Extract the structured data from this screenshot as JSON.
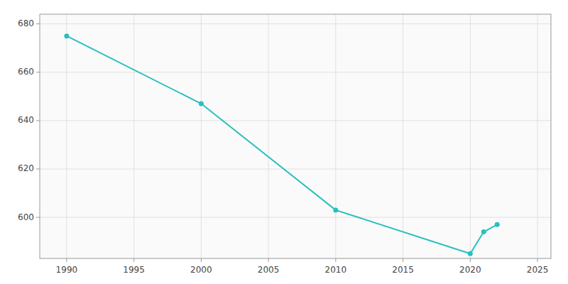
{
  "chart_data": {
    "type": "line",
    "x": [
      1990,
      2000,
      2010,
      2020,
      2021,
      2022
    ],
    "values": [
      675,
      647,
      603,
      585,
      594,
      597
    ],
    "color": "#29BFBF",
    "marker": "circle",
    "xlim": [
      1988,
      2026
    ],
    "ylim": [
      583,
      684
    ],
    "xticks": [
      1990,
      1995,
      2000,
      2005,
      2010,
      2015,
      2020,
      2025
    ],
    "yticks": [
      600,
      620,
      640,
      660,
      680
    ],
    "grid": true
  }
}
